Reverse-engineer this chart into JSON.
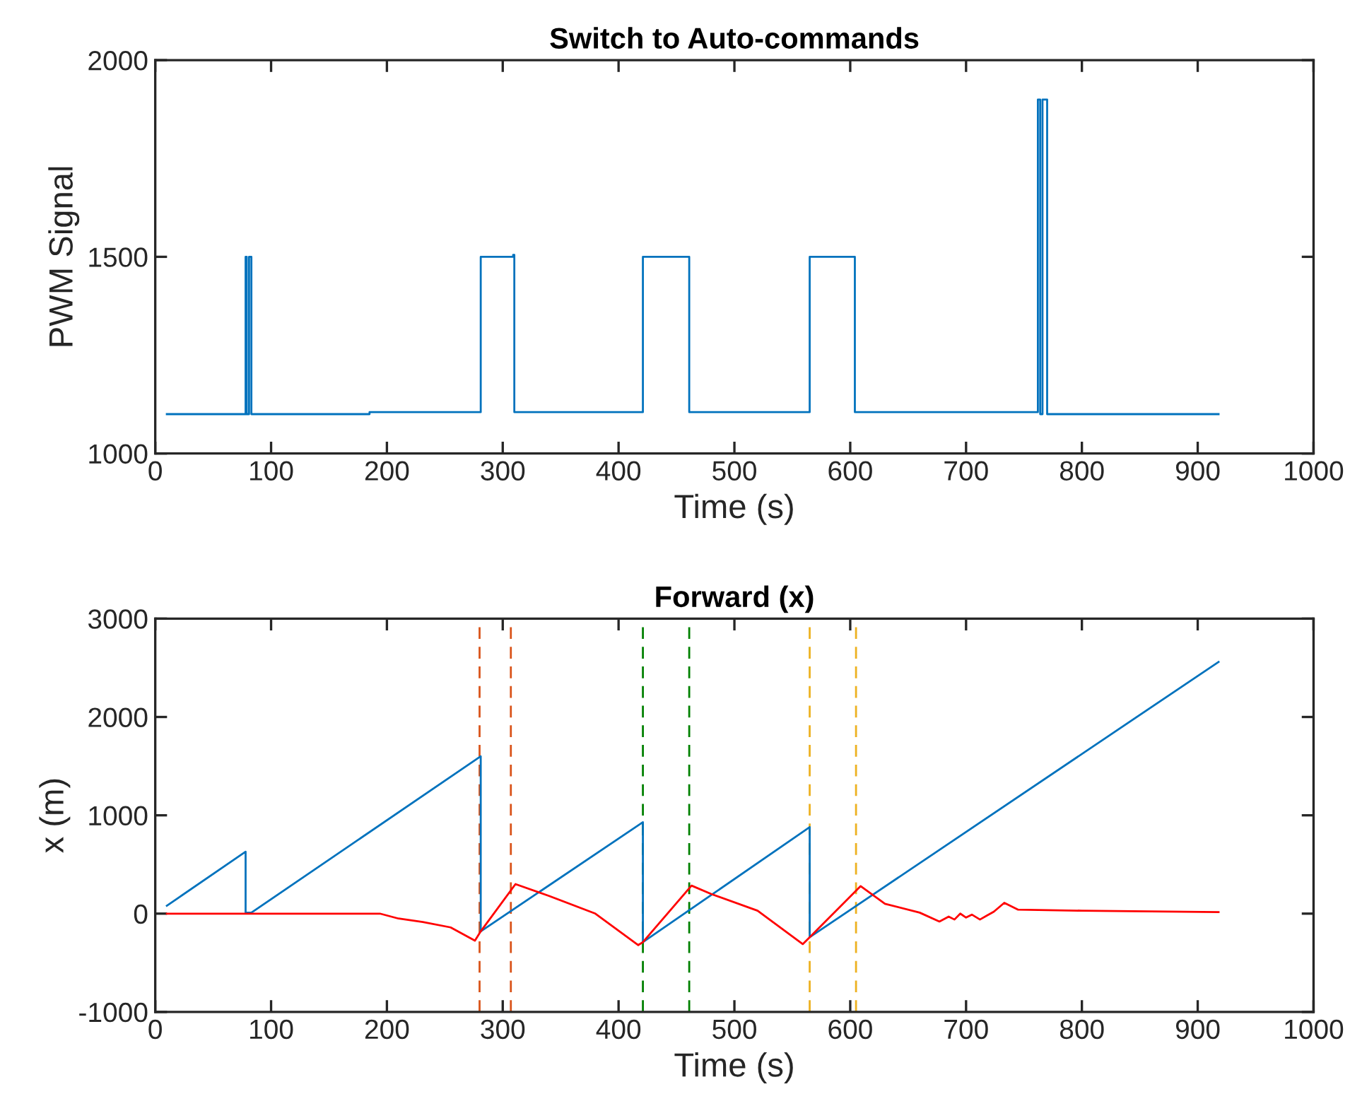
{
  "chart_data": [
    {
      "type": "line",
      "title": "Switch to Auto-commands",
      "xlabel": "Time (s)",
      "ylabel": "PWM Signal",
      "xlim": [
        0,
        1000
      ],
      "ylim": [
        1000,
        2000
      ],
      "xticks": [
        0,
        100,
        200,
        300,
        400,
        500,
        600,
        700,
        800,
        900,
        1000
      ],
      "yticks": [
        1000,
        1500,
        2000
      ],
      "grid": false,
      "legend": false,
      "series": [
        {
          "color": "#0072bd",
          "x": [
            10,
            78,
            78,
            79,
            79,
            81,
            81,
            83,
            83,
            185,
            185,
            281,
            281,
            309,
            309,
            310,
            310,
            421,
            421,
            461,
            461,
            565,
            565,
            604,
            604,
            762,
            762,
            764,
            764,
            766,
            766,
            770,
            770,
            918
          ],
          "values": [
            1100,
            1100,
            1500,
            1500,
            1100,
            1100,
            1500,
            1500,
            1100,
            1100,
            1105,
            1105,
            1500,
            1500,
            1505,
            1505,
            1105,
            1105,
            1500,
            1500,
            1105,
            1105,
            1500,
            1500,
            1105,
            1105,
            1900,
            1900,
            1100,
            1100,
            1900,
            1900,
            1100,
            1100
          ]
        }
      ]
    },
    {
      "type": "line",
      "title": "Forward (x)",
      "xlabel": "Time (s)",
      "ylabel": "x (m)",
      "xlim": [
        0,
        1000
      ],
      "ylim": [
        -1000,
        3000
      ],
      "xticks": [
        0,
        100,
        200,
        300,
        400,
        500,
        600,
        700,
        800,
        900,
        1000
      ],
      "yticks": [
        -1000,
        0,
        1000,
        2000,
        3000
      ],
      "grid": false,
      "legend": false,
      "ref_lines": [
        {
          "axis": "x",
          "value": 280,
          "color": "#d95319",
          "line_style": "dashed"
        },
        {
          "axis": "x",
          "value": 307,
          "color": "#d95319",
          "line_style": "dashed"
        },
        {
          "axis": "x",
          "value": 421,
          "color": "#008000",
          "line_style": "dashed"
        },
        {
          "axis": "x",
          "value": 461,
          "color": "#008000",
          "line_style": "dashed"
        },
        {
          "axis": "x",
          "value": 565,
          "color": "#edb120",
          "line_style": "dashed"
        },
        {
          "axis": "x",
          "value": 605,
          "color": "#edb120",
          "line_style": "dashed"
        }
      ],
      "series": [
        {
          "color": "#0072bd",
          "x": [
            10,
            78,
            78,
            83,
            281,
            281,
            421,
            421,
            565,
            565,
            918
          ],
          "values": [
            80,
            630,
            10,
            10,
            1600,
            -180,
            930,
            -290,
            880,
            -240,
            2560
          ]
        },
        {
          "color": "#ff0000",
          "x": [
            10,
            100,
            194,
            210,
            231,
            255,
            276,
            281,
            311,
            340,
            380,
            417,
            421,
            463,
            480,
            520,
            559,
            565,
            609,
            630,
            660,
            677,
            685,
            690,
            695,
            700,
            705,
            712,
            718,
            724,
            733,
            745,
            800,
            918
          ],
          "values": [
            0,
            0,
            0,
            -50,
            -85,
            -140,
            -275,
            -180,
            300,
            180,
            0,
            -320,
            -290,
            285,
            200,
            30,
            -310,
            -240,
            280,
            100,
            10,
            -80,
            -30,
            -60,
            0,
            -40,
            -10,
            -60,
            -20,
            20,
            110,
            40,
            30,
            15
          ]
        }
      ]
    }
  ]
}
